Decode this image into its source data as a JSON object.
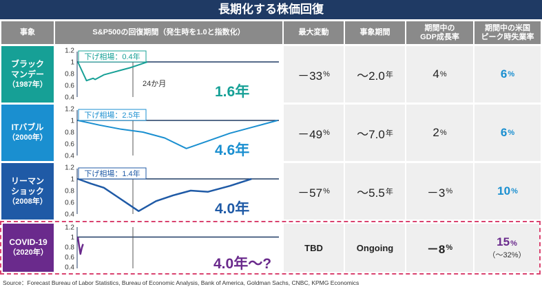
{
  "title": "長期化する株価回復",
  "headers": {
    "event": "事象",
    "chart": "S&P500の回復期間（発生時を1.0と指数化）",
    "max_drop": "最大変動",
    "duration": "事象期間",
    "gdp_line1": "期間中の",
    "gdp_line2": "GDP成長率",
    "unemp_line1": "期間中の米国",
    "unemp_line2": "ピーク時失業率"
  },
  "rows": [
    {
      "name1": "ブラック",
      "name2": "マンデー",
      "year": "（1987年）",
      "color": "#16a096",
      "bear_label": "下げ相場：0.4年",
      "recovery": "1.6年",
      "extra_note": "24か月",
      "max_drop": "－33",
      "duration_val": "～2.0",
      "duration_unit": "年",
      "gdp": "4",
      "unemployment": "6",
      "pct": "%"
    },
    {
      "name1": "ITバブル",
      "name2": "",
      "year": "（2000年）",
      "color": "#1a8fd0",
      "bear_label": "下げ相場：2.5年",
      "recovery": "4.6年",
      "max_drop": "－49",
      "duration_val": "～7.0",
      "duration_unit": "年",
      "gdp": "2",
      "unemployment": "6",
      "pct": "%"
    },
    {
      "name1": "リーマン",
      "name2": "ショック",
      "year": "（2008年）",
      "color": "#1f5aa6",
      "bear_label": "下げ相場：1.4年",
      "recovery": "4.0年",
      "max_drop": "－57",
      "duration_val": "～5.5",
      "duration_unit": "年",
      "gdp": "－3",
      "unemployment": "10",
      "pct": "%"
    },
    {
      "name1": "COVID-19",
      "name2": "",
      "year": "（2020年）",
      "color": "#6a2a8c",
      "recovery": "4.0年～?",
      "max_drop": "TBD",
      "duration_val": "Ongoing",
      "gdp": "－8",
      "unemployment": "15",
      "unemployment_sub": "（～32%）",
      "pct": "%"
    }
  ],
  "source": "Source：Forecast Bureau of Labor Statistics, Bureau of Economic Analysis, Bank of America, Goldman Sachs, CNBC, KPMG Economics",
  "chart_data": [
    {
      "type": "line",
      "event": "ブラックマンデー",
      "ylim": [
        0.4,
        1.2
      ],
      "yticks": [
        "1.2",
        "1",
        "0.8",
        "0.6",
        "0.4"
      ],
      "x_years": [
        0,
        0.2,
        0.35,
        0.4,
        0.6,
        0.8,
        1.0,
        1.2,
        1.4,
        1.6
      ],
      "series": [
        {
          "values": [
            1.0,
            0.68,
            0.72,
            0.7,
            0.78,
            0.82,
            0.86,
            0.9,
            0.95,
            1.0
          ]
        }
      ]
    },
    {
      "type": "line",
      "event": "ITバブル",
      "ylim": [
        0.4,
        1.2
      ],
      "yticks": [
        "1.2",
        "1",
        "0.8",
        "0.6",
        "0.4"
      ],
      "x_years": [
        0,
        0.5,
        1.0,
        1.5,
        2.0,
        2.5,
        3.0,
        3.5,
        4.0,
        4.6
      ],
      "series": [
        {
          "values": [
            1.0,
            0.92,
            0.85,
            0.8,
            0.7,
            0.52,
            0.65,
            0.78,
            0.88,
            1.0
          ]
        }
      ]
    },
    {
      "type": "line",
      "event": "リーマンショック",
      "ylim": [
        0.4,
        1.2
      ],
      "yticks": [
        "1.2",
        "1",
        "0.8",
        "0.6",
        "0.4"
      ],
      "x_years": [
        0,
        0.3,
        0.6,
        0.9,
        1.2,
        1.4,
        1.8,
        2.2,
        2.6,
        3.0,
        3.5,
        4.0
      ],
      "series": [
        {
          "values": [
            1.0,
            0.92,
            0.85,
            0.7,
            0.55,
            0.45,
            0.62,
            0.72,
            0.8,
            0.78,
            0.88,
            1.0
          ]
        }
      ]
    },
    {
      "type": "line",
      "event": "COVID-19",
      "ylim": [
        0.4,
        1.2
      ],
      "yticks": [
        "1.2",
        "1",
        "0.8",
        "0.6",
        "0.4"
      ],
      "x_years": [
        0,
        0.03,
        0.06,
        0.09,
        0.12
      ],
      "series": [
        {
          "values": [
            1.0,
            0.82,
            0.66,
            0.78,
            0.86
          ]
        }
      ]
    }
  ]
}
